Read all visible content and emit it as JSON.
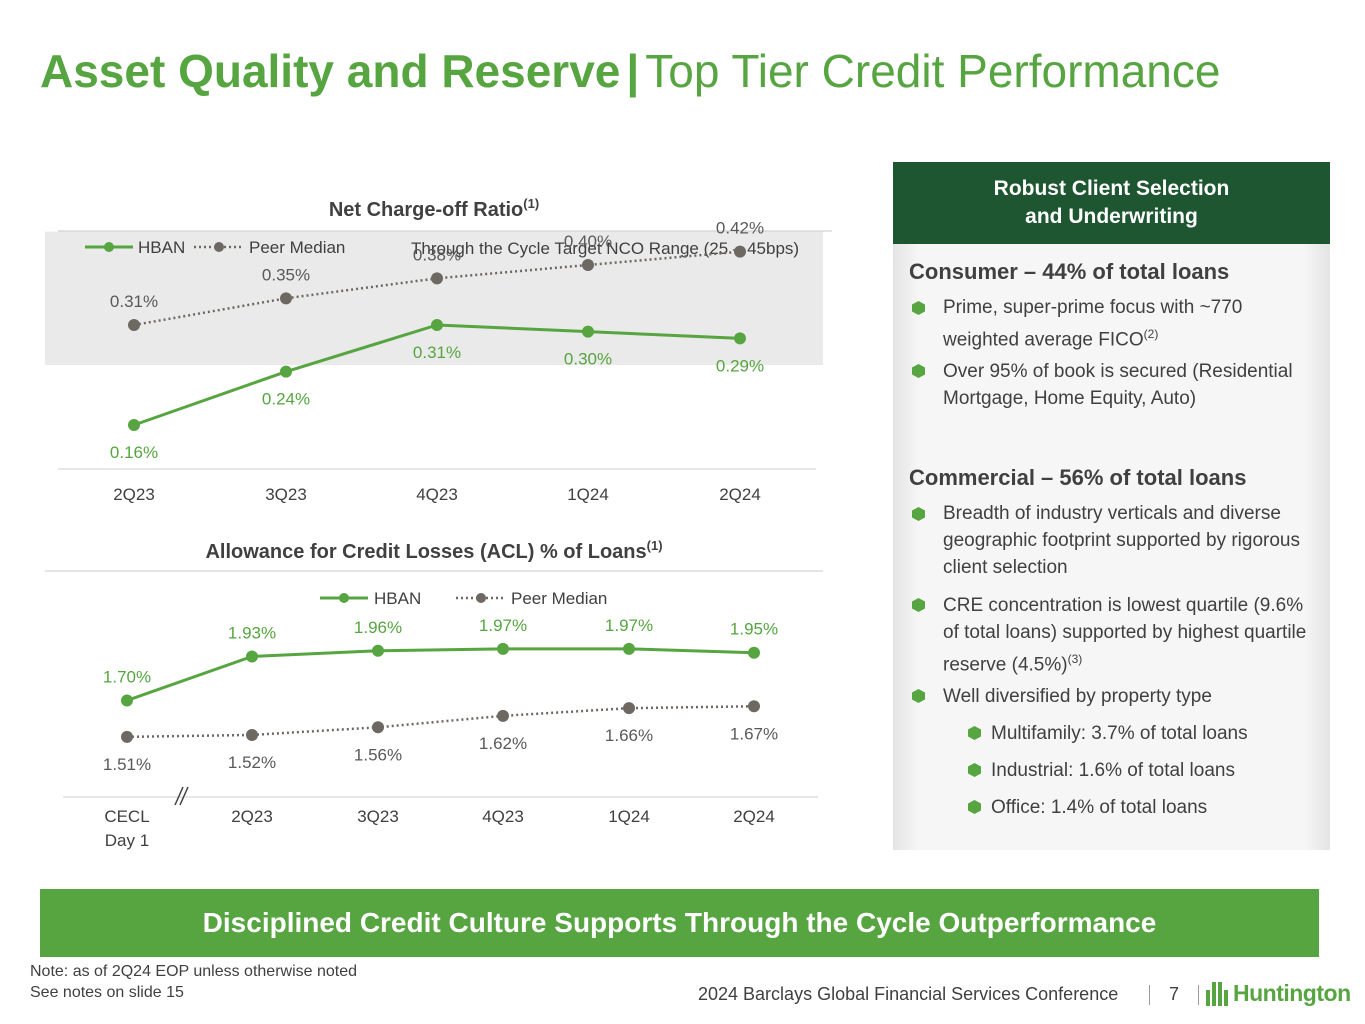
{
  "title": {
    "bold": "Asset Quality and Reserve",
    "separator": "|",
    "light": "Top Tier Credit Performance"
  },
  "chart_data": [
    {
      "type": "line",
      "title": "Net Charge-off Ratio",
      "title_sup": "(1)",
      "categories": [
        "2Q23",
        "3Q23",
        "4Q23",
        "1Q24",
        "2Q24"
      ],
      "series": [
        {
          "name": "HBAN",
          "values": [
            0.16,
            0.24,
            0.31,
            0.3,
            0.29
          ],
          "labels": [
            "0.16%",
            "0.24%",
            "0.31%",
            "0.30%",
            "0.29%"
          ],
          "color": "#56A540",
          "style": "solid"
        },
        {
          "name": "Peer Median",
          "values": [
            0.31,
            0.35,
            0.38,
            0.4,
            0.42
          ],
          "labels": [
            "0.31%",
            "0.35%",
            "0.38%",
            "0.40%",
            "0.42%"
          ],
          "color": "#6E6862",
          "style": "dotted"
        }
      ],
      "band": {
        "label": "Through the Cycle Target NCO Range (25 – 45bps)",
        "from": 0.25,
        "to": 0.45,
        "color": "#EAEAEA"
      },
      "ylim": [
        0.1,
        0.46
      ],
      "legend": "top"
    },
    {
      "type": "line",
      "title": "Allowance for Credit Losses (ACL) % of Loans",
      "title_sup": "(1)",
      "categories": [
        [
          "CECL",
          "Day 1"
        ],
        [
          "2Q23"
        ],
        [
          "3Q23"
        ],
        [
          "4Q23"
        ],
        [
          "1Q24"
        ],
        [
          "2Q24"
        ]
      ],
      "series": [
        {
          "name": "HBAN",
          "values": [
            1.7,
            1.93,
            1.96,
            1.97,
            1.97,
            1.95
          ],
          "labels": [
            "1.70%",
            "1.93%",
            "1.96%",
            "1.97%",
            "1.97%",
            "1.95%"
          ],
          "color": "#56A540",
          "style": "solid"
        },
        {
          "name": "Peer Median",
          "values": [
            1.51,
            1.52,
            1.56,
            1.62,
            1.66,
            1.67
          ],
          "labels": [
            "1.51%",
            "1.52%",
            "1.56%",
            "1.62%",
            "1.66%",
            "1.67%"
          ],
          "color": "#6E6862",
          "style": "dotted"
        }
      ],
      "ylim": [
        1.18,
        2.33
      ],
      "axis_break": true,
      "legend": "top"
    }
  ],
  "panel": {
    "header_line1": "Robust Client Selection",
    "header_line2": "and Underwriting",
    "consumer_title": "Consumer – 44% of total loans",
    "consumer_b1": "Prime, super-prime focus with ~770 weighted average FICO",
    "consumer_b1_sup": "(2)",
    "consumer_b2": "Over 95% of book is secured (Residential Mortgage, Home Equity, Auto)",
    "commercial_title": "Commercial – 56% of total loans",
    "commercial_b1": "Breadth of industry verticals and diverse geographic footprint supported by rigorous client selection",
    "commercial_b2": "CRE concentration is lowest quartile (9.6% of total loans) supported by highest quartile reserve (4.5%)",
    "commercial_b2_sup": "(3)",
    "commercial_b3": "Well diversified by property type",
    "sub1": "Multifamily: 3.7% of total loans",
    "sub2": "Industrial: 1.6% of total loans",
    "sub3": "Office: 1.4% of total loans"
  },
  "banner": "Disciplined Credit Culture Supports Through the Cycle Outperformance",
  "notes": {
    "line1": "Note: as of 2Q24 EOP unless otherwise noted",
    "line2": "See notes on slide 15"
  },
  "footer": {
    "conference": "2024 Barclays Global Financial Services Conference",
    "page": "7",
    "logo": "Huntington"
  },
  "colors": {
    "green": "#56A540",
    "dark_green": "#1E5631",
    "peer": "#6E6862"
  }
}
